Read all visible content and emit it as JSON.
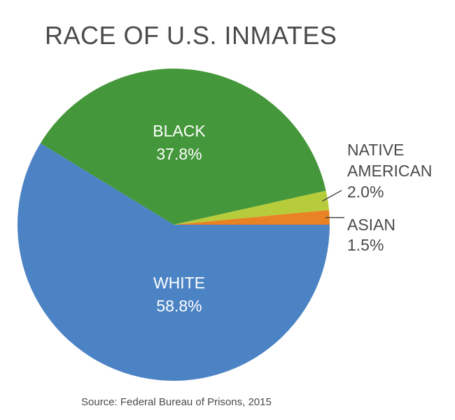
{
  "chart_data": {
    "type": "pie",
    "title": "RACE OF U.S. INMATES",
    "source": "Source: Federal Bureau of Prisons, 2015",
    "slices": [
      {
        "label": "WHITE",
        "value": 58.8,
        "value_label": "58.8%",
        "color": "#4c83c4",
        "label_position": "inside"
      },
      {
        "label": "BLACK",
        "value": 37.8,
        "value_label": "37.8%",
        "color": "#44973a",
        "label_position": "inside"
      },
      {
        "label_lines": [
          "NATIVE",
          "AMERICAN"
        ],
        "value": 2.0,
        "value_label": "2.0%",
        "color": "#b6cc3a",
        "label_position": "outside"
      },
      {
        "label": "ASIAN",
        "value": 1.5,
        "value_label": "1.5%",
        "color": "#e98225",
        "label_position": "outside"
      }
    ]
  }
}
